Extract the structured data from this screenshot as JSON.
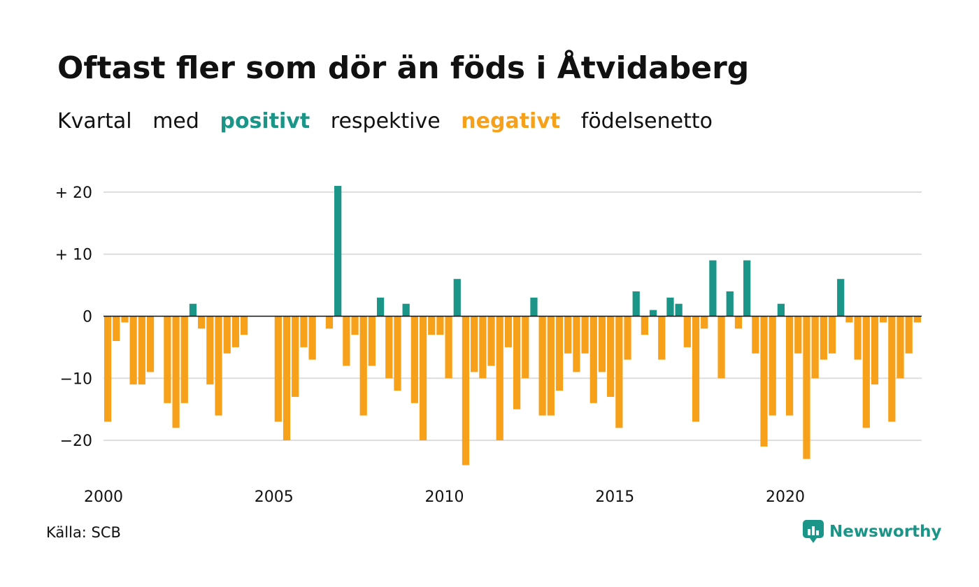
{
  "title": "Oftast fler som dör än föds i Åtvidaberg",
  "subtitle": {
    "word1": "Kvartal",
    "word2": "med",
    "positive": "positivt",
    "word3": "respektive",
    "negative": "negativt",
    "word4": "födelsenetto"
  },
  "source": "Källa: SCB",
  "logo_text": "Newsworthy",
  "colors": {
    "positive": "#1a9587",
    "negative": "#f7a11a",
    "grid": "#dddddd",
    "zero": "#111111"
  },
  "chart_data": {
    "type": "bar",
    "title": "Oftast fler som dör än föds i Åtvidaberg",
    "xlabel": "",
    "ylabel": "",
    "ylim": [
      -26,
      24
    ],
    "grid": true,
    "y_ticks": [
      {
        "value": 20,
        "label": "+ 20"
      },
      {
        "value": 10,
        "label": "+ 10"
      },
      {
        "value": 0,
        "label": "0"
      },
      {
        "value": -10,
        "label": "−10"
      },
      {
        "value": -20,
        "label": "−20"
      }
    ],
    "x_ticks": [
      "2000",
      "2005",
      "2010",
      "2015",
      "2020"
    ],
    "categories": [
      "2000 K1",
      "2000 K2",
      "2000 K3",
      "2000 K4",
      "2001 K1",
      "2001 K2",
      "2001 K3",
      "2001 K4",
      "2002 K1",
      "2002 K2",
      "2002 K3",
      "2002 K4",
      "2003 K1",
      "2003 K2",
      "2003 K3",
      "2003 K4",
      "2004 K1",
      "2004 K2",
      "2004 K3",
      "2004 K4",
      "2005 K1",
      "2005 K2",
      "2005 K3",
      "2005 K4",
      "2006 K1",
      "2006 K2",
      "2006 K3",
      "2006 K4",
      "2007 K1",
      "2007 K2",
      "2007 K3",
      "2007 K4",
      "2008 K1",
      "2008 K2",
      "2008 K3",
      "2008 K4",
      "2009 K1",
      "2009 K2",
      "2009 K3",
      "2009 K4",
      "2010 K1",
      "2010 K2",
      "2010 K3",
      "2010 K4",
      "2011 K1",
      "2011 K2",
      "2011 K3",
      "2011 K4",
      "2012 K1",
      "2012 K2",
      "2012 K3",
      "2012 K4",
      "2013 K1",
      "2013 K2",
      "2013 K3",
      "2013 K4",
      "2014 K1",
      "2014 K2",
      "2014 K3",
      "2014 K4",
      "2015 K1",
      "2015 K2",
      "2015 K3",
      "2015 K4",
      "2016 K1",
      "2016 K2",
      "2016 K3",
      "2016 K4",
      "2017 K1",
      "2017 K2",
      "2017 K3",
      "2017 K4",
      "2018 K1",
      "2018 K2",
      "2018 K3",
      "2018 K4",
      "2019 K1",
      "2019 K2",
      "2019 K3",
      "2019 K4",
      "2020 K1",
      "2020 K2",
      "2020 K3",
      "2020 K4",
      "2021 K1",
      "2021 K2",
      "2021 K3",
      "2021 K4",
      "2022 K1",
      "2022 K2",
      "2022 K3",
      "2022 K4",
      "2023 K1",
      "2023 K2",
      "2023 K3",
      "2023 K4"
    ],
    "values": [
      -17,
      -4,
      -1,
      -11,
      -11,
      -9,
      0,
      -14,
      -18,
      -14,
      2,
      -2,
      -11,
      -16,
      -6,
      -5,
      -3,
      0,
      0,
      0,
      -17,
      -20,
      -13,
      -5,
      -7,
      0,
      -2,
      21,
      -8,
      -3,
      -16,
      -8,
      3,
      -10,
      -12,
      2,
      -14,
      -20,
      -3,
      -3,
      -10,
      6,
      -24,
      -9,
      -10,
      -8,
      -20,
      -5,
      -15,
      -10,
      3,
      -16,
      -16,
      -12,
      -6,
      -9,
      -6,
      -14,
      -9,
      -13,
      -18,
      -7,
      4,
      -3,
      1,
      -7,
      3,
      2,
      -5,
      -17,
      -2,
      9,
      -10,
      4,
      -2,
      9,
      -6,
      -21,
      -16,
      2,
      -16,
      -6,
      -23,
      -10,
      -7,
      -6,
      6,
      -1,
      -7,
      -18,
      -11,
      -1,
      -17,
      -10,
      -6,
      -1
    ]
  }
}
